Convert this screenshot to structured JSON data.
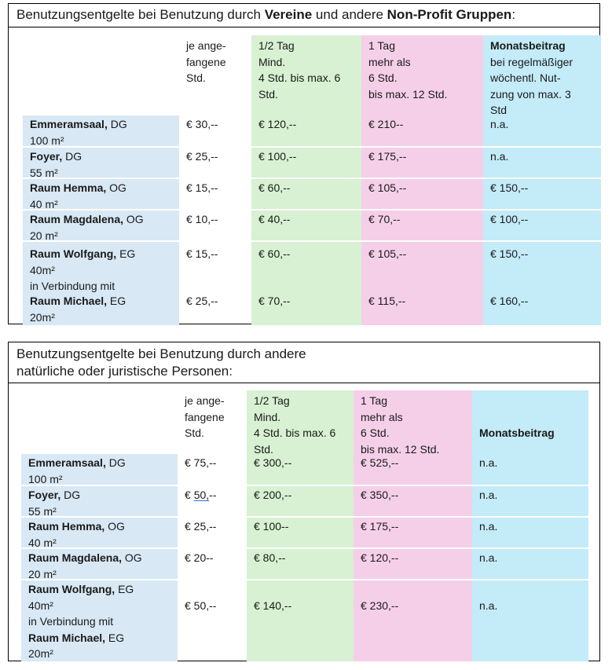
{
  "table1": {
    "title_pre": "Benutzungsentgelte bei Benutzung durch ",
    "title_bold1": "Vereine",
    "title_mid": " und andere ",
    "title_bold2": "Non-Profit Gruppen",
    "title_post": ":",
    "headers": {
      "hour": "je ange-\nfangene\nStd.",
      "half": "1/2 Tag\nMind.\n4 Std. bis max. 6\nStd.",
      "day": "1 Tag\nmehr als\n6 Std.\nbis max. 12 Std.",
      "month_bold": "Monatsbeitrag",
      "month_rest": "bei regelmäßiger\nwöchentl. Nut-\nzung von max. 3\nStd"
    },
    "rows": [
      {
        "name": "Emmeramsaal,",
        "floor": " DG",
        "area": "100 m²",
        "hour": "€ 30,--",
        "half": "€ 120,--",
        "day": "€ 210--",
        "month": "n.a."
      },
      {
        "name": "Foyer,",
        "floor": " DG",
        "area": "55 m²",
        "hour": "€ 25,--",
        "half": "€ 100,--",
        "day": "€ 175,--",
        "month": "n.a."
      },
      {
        "name": "Raum Hemma,",
        "floor": " OG",
        "area": "40 m²",
        "hour": "€ 15,--",
        "half": "€ 60,--",
        "day": "€ 105,--",
        "month": "€ 150,--"
      },
      {
        "name": "Raum Magdalena,",
        "floor": " OG",
        "area": "20 m²",
        "hour": "€ 10,--",
        "half": "€ 40,--",
        "day": "€ 70,--",
        "month": "€ 100,--"
      },
      {
        "name": "Raum Wolfgang,",
        "floor": " EG",
        "area": "40m²\nin Verbindung mit",
        "hour": "€ 15,--",
        "half": "€ 60,--",
        "day": "€ 105,--",
        "month": "€ 150,--"
      },
      {
        "name": "Raum Michael,",
        "floor": " EG",
        "area": "20m²",
        "hour": "€ 25,--",
        "half": "€ 70,--",
        "day": "€ 115,--",
        "month": "€ 160,--"
      }
    ]
  },
  "table2": {
    "title": "Benutzungsentgelte bei Benutzung durch andere\nnatürliche oder juristische Personen:",
    "headers": {
      "hour": "je ange-\nfangene\nStd.",
      "half": "1/2 Tag\nMind.\n4 Std. bis max. 6\nStd.",
      "day": "1 Tag\nmehr als\n6 Std.\nbis max. 12 Std.",
      "month": "Monatsbeitrag"
    },
    "rows": [
      {
        "name": "Emmeramsaal,",
        "floor": " DG",
        "area": "100 m²",
        "hour": "€ 75,--",
        "half": "€ 300,--",
        "day": "€ 525,--",
        "month": "n.a."
      },
      {
        "name": "Foyer,",
        "floor": " DG",
        "area": "55 m²",
        "hour_pre": "€ ",
        "hour_u": "50,",
        "hour_post": "--",
        "half": "€ 200,--",
        "day": "€ 350,--",
        "month": "n.a."
      },
      {
        "name": "Raum Hemma,",
        "floor": " OG",
        "area": "40 m²",
        "hour": "€ 25,--",
        "half": "€ 100--",
        "day": "€ 175,--",
        "month": "n.a."
      },
      {
        "name": "Raum Magdalena,",
        "floor": " OG",
        "area": "20 m²",
        "hour": "€ 20--",
        "half": "€ 80,--",
        "day": "€ 120,--",
        "month": "n.a."
      },
      {
        "name": "Raum Wolfgang,",
        "floor": " EG",
        "area": "40m²\nin Verbindung mit",
        "name2": "Raum Michael,",
        "floor2": " EG",
        "area2": "20m²",
        "hour": "€ 50,--",
        "half": "€ 140,--",
        "day": "€ 230,--",
        "month": "n.a."
      }
    ]
  }
}
